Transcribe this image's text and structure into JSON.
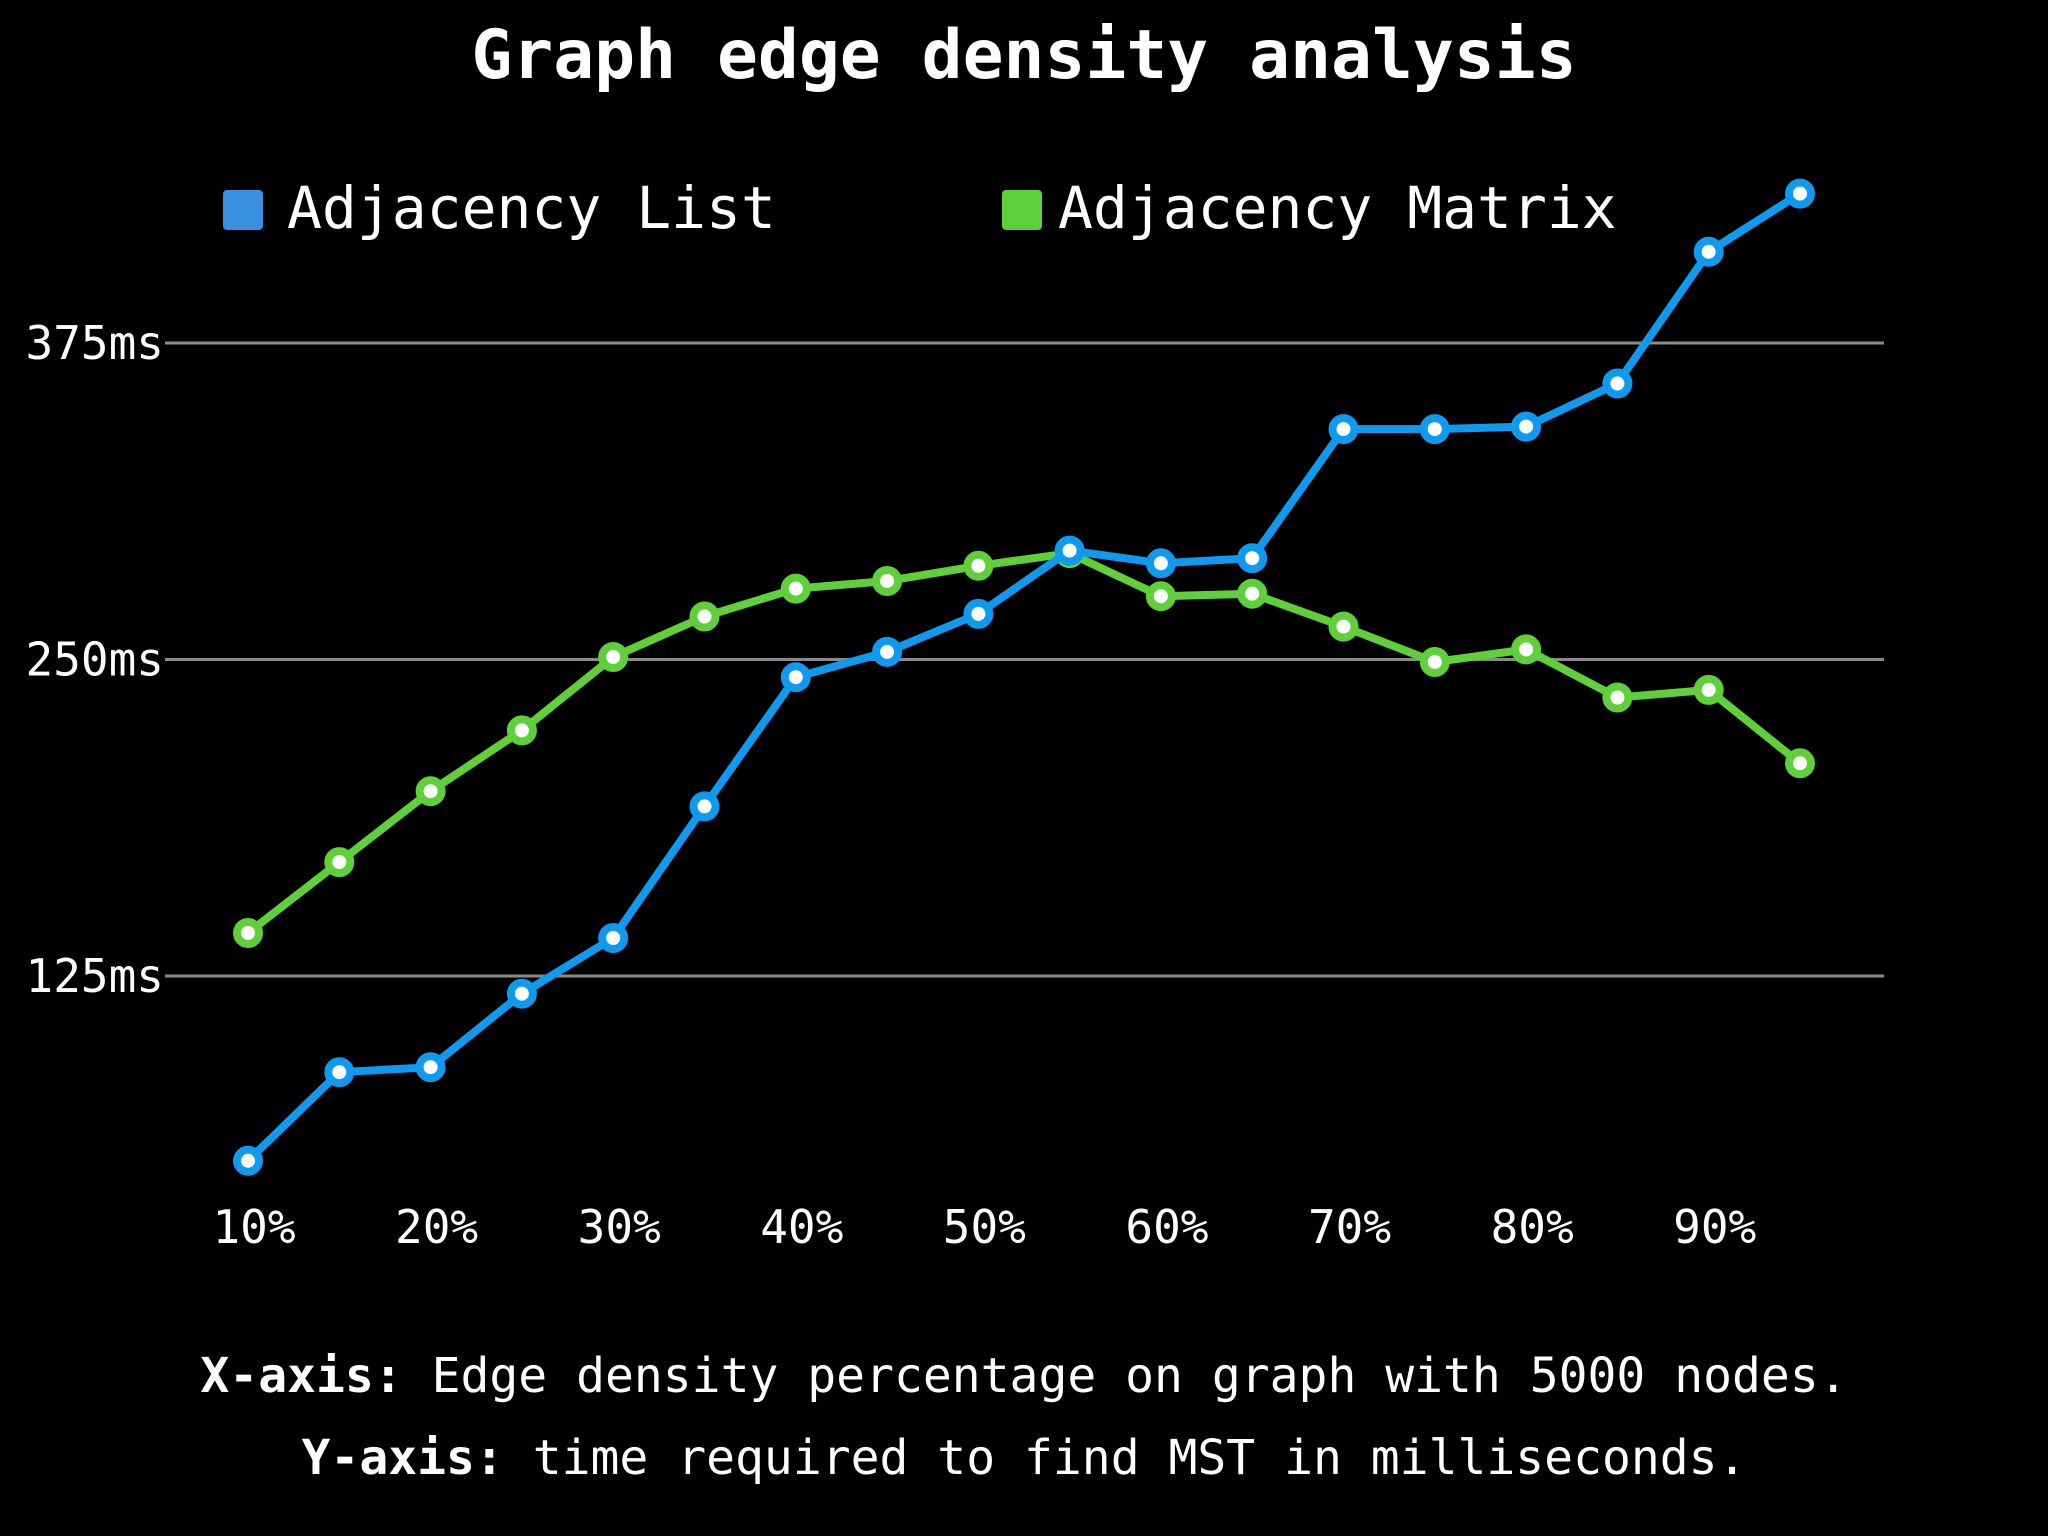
{
  "chart_data": {
    "type": "line",
    "title": "Graph edge density analysis",
    "x": [
      10,
      15,
      20,
      25,
      30,
      35,
      40,
      45,
      50,
      55,
      60,
      65,
      70,
      75,
      80,
      85,
      90,
      95
    ],
    "x_tick_values": [
      10,
      20,
      30,
      40,
      50,
      60,
      70,
      80,
      90
    ],
    "x_tick_labels": [
      "10%",
      "20%",
      "30%",
      "40%",
      "50%",
      "60%",
      "70%",
      "80%",
      "90%"
    ],
    "y_tick_values": [
      125,
      250,
      375
    ],
    "y_tick_labels": [
      "125ms",
      "250ms",
      "375ms"
    ],
    "ylim": [
      50,
      430
    ],
    "xlim": [
      8,
      104
    ],
    "grid": true,
    "legend_position": "top",
    "series": [
      {
        "name": "Adjacency List",
        "color": "#0f9af0",
        "legend_color": "#3a8fe0",
        "values": [
          52,
          87,
          89,
          118,
          140,
          192,
          243,
          253,
          268,
          293,
          288,
          290,
          341,
          341,
          342,
          359,
          411,
          434
        ]
      },
      {
        "name": "Adjacency Matrix",
        "color": "#5fcf3a",
        "legend_color": "#5fcf3a",
        "values": [
          142,
          170,
          198,
          222,
          251,
          267,
          278,
          281,
          287,
          292,
          275,
          276,
          263,
          249,
          254,
          235,
          238,
          209
        ]
      }
    ],
    "caption": {
      "x_label_prefix": "X-axis:",
      "x_label_text": " Edge density percentage on graph with 5000 nodes.",
      "y_label_prefix": "Y-axis:",
      "y_label_text": " time required to find MST in milliseconds."
    }
  }
}
